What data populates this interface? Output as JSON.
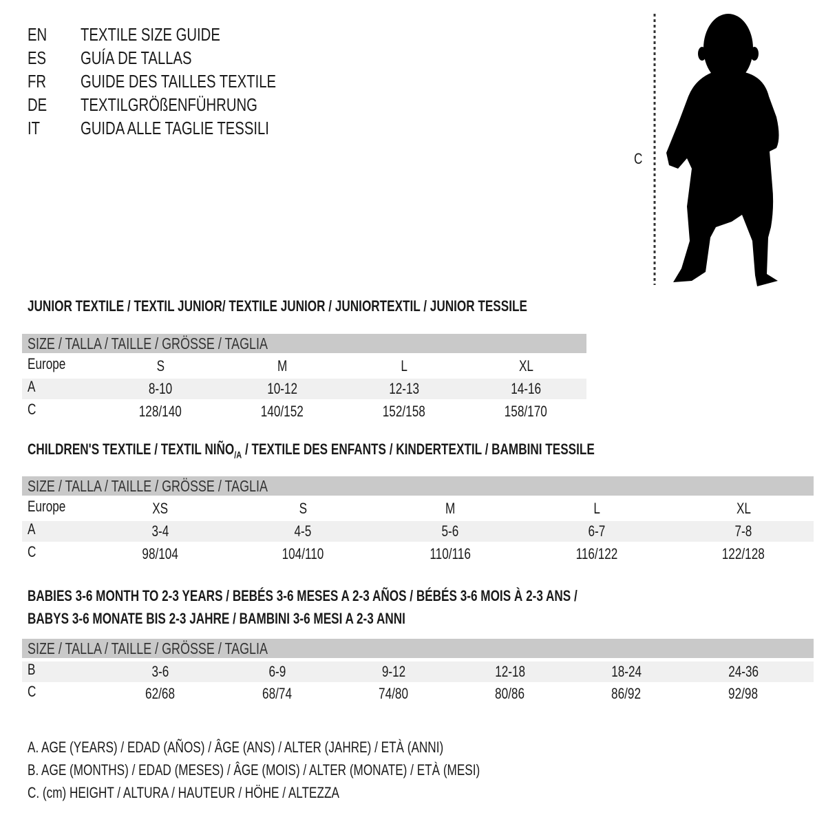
{
  "languages": [
    {
      "code": "EN",
      "title": "TEXTILE SIZE GUIDE"
    },
    {
      "code": "ES",
      "title": "GUÍA DE TALLAS"
    },
    {
      "code": "FR",
      "title": "GUIDE DES TAILLES TEXTILE"
    },
    {
      "code": "DE",
      "title": "TEXTILGRÖßENFÜHRUNG"
    },
    {
      "code": "IT",
      "title": "GUIDA ALLE TAGLIE TESSILI"
    }
  ],
  "figure": {
    "measure_label": "C",
    "icon": "child-silhouette"
  },
  "colors": {
    "header_bg": "#c9c9c9",
    "row_shade": "#f0f0f0"
  },
  "junior": {
    "title": "JUNIOR TEXTILE / TEXTIL JUNIOR/ TEXTILE JUNIOR / JUNIORTEXTIL / JUNIOR TESSILE",
    "header": "SIZE / TALLA / TAILLE / GRÖSSE / TAGLIA",
    "rows": [
      {
        "label": "Europe",
        "values": [
          "S",
          "M",
          "L",
          "XL"
        ]
      },
      {
        "label": "A",
        "values": [
          "8-10",
          "10-12",
          "12-13",
          "14-16"
        ]
      },
      {
        "label": "C",
        "values": [
          "128/140",
          "140/152",
          "152/158",
          "158/170"
        ]
      }
    ]
  },
  "children": {
    "title": "CHILDREN'S TEXTILE / TEXTIL NIÑO",
    "title_sub": "/A",
    "title_rest": " / TEXTILE DES ENFANTS / KINDERTEXTIL / BAMBINI TESSILE",
    "header": "SIZE / TALLA / TAILLE / GRÖSSE / TAGLIA",
    "rows": [
      {
        "label": "Europe",
        "values": [
          "XS",
          "S",
          "M",
          "L",
          "XL"
        ]
      },
      {
        "label": "A",
        "values": [
          "3-4",
          "4-5",
          "5-6",
          "6-7",
          "7-8"
        ]
      },
      {
        "label": "C",
        "values": [
          "98/104",
          "104/110",
          "110/116",
          "116/122",
          "122/128"
        ]
      }
    ]
  },
  "babies": {
    "title_line1": "BABIES 3-6 MONTH TO 2-3 YEARS / BEBÉS 3-6 MESES A 2-3 AÑOS / BÉBÉS 3-6 MOIS À 2-3 ANS /",
    "title_line2": "BABYS 3-6 MONATE BIS 2-3 JAHRE / BAMBINI 3-6 MESI A 2-3 ANNI",
    "header": "SIZE / TALLA / TAILLE / GRÖSSE / TAGLIA",
    "rows": [
      {
        "label": "B",
        "values": [
          "3-6",
          "6-9",
          "9-12",
          "12-18",
          "18-24",
          "24-36"
        ]
      },
      {
        "label": "C",
        "values": [
          "62/68",
          "68/74",
          "74/80",
          "80/86",
          "86/92",
          "92/98"
        ]
      }
    ]
  },
  "legend": [
    "A. AGE (YEARS) / EDAD (AÑOS) / ÂGE (ANS) / ALTER (JAHRE) / ETÀ (ANNI)",
    "B. AGE (MONTHS) / EDAD (MESES) / ÂGE (MOIS) / ALTER (MONATE) / ETÀ (MESI)",
    "C. (cm) HEIGHT / ALTURA / HAUTEUR / HÖHE / ALTEZZA"
  ]
}
